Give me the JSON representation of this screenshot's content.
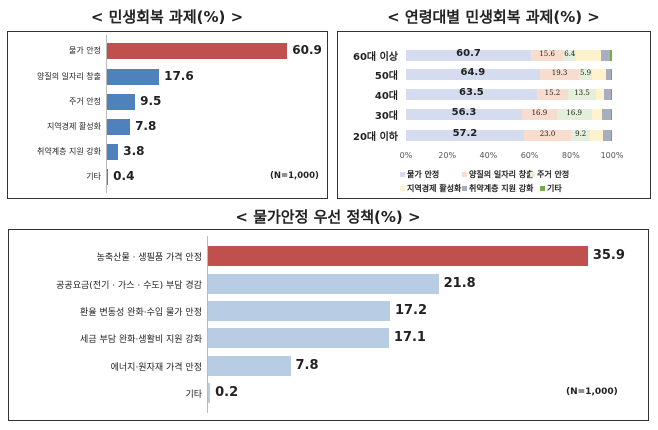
{
  "chart_data": [
    {
      "type": "bar",
      "orientation": "horizontal",
      "title": "< 민생회복 과제(%) >",
      "categories": [
        "물가 안정",
        "양질의 일자리 창출",
        "주거 안정",
        "지역경제 활성화",
        "취약계층 지원 강화",
        "기타"
      ],
      "values": [
        60.9,
        17.6,
        9.5,
        7.8,
        3.8,
        0.4
      ],
      "colors": [
        "#c0504d",
        "#4f81bd",
        "#4f81bd",
        "#4f81bd",
        "#4f81bd",
        "#4f81bd"
      ],
      "note": "(N=1,000)"
    },
    {
      "type": "bar",
      "stacked": true,
      "orientation": "horizontal",
      "title": "< 연령대별 민생회복 과제(%) >",
      "categories": [
        "60대 이상",
        "50대",
        "40대",
        "30대",
        "20대 이하"
      ],
      "xticks": [
        "0%",
        "20%",
        "40%",
        "60%",
        "80%",
        "100%"
      ],
      "xlim": [
        0,
        100
      ],
      "legend": "bottom",
      "series": [
        {
          "name": "물가 안정",
          "color": "#d6dcef",
          "values": [
            60.7,
            64.9,
            63.5,
            56.3,
            57.2
          ]
        },
        {
          "name": "양질의 일자리 창출",
          "color": "#f8dccd",
          "values": [
            15.6,
            19.3,
            15.2,
            16.9,
            23.0
          ]
        },
        {
          "name": "주거 안정",
          "color": "#e3efda",
          "values": [
            6.4,
            5.9,
            13.5,
            16.9,
            9.2
          ]
        },
        {
          "name": "지역경제 활성화",
          "color": "#fff2cc",
          "values": [
            12.0,
            7.0,
            4.0,
            5.0,
            6.0
          ]
        },
        {
          "name": "취약계층 지원 강화",
          "color": "#a6aebf",
          "values": [
            4.3,
            2.4,
            3.4,
            4.5,
            4.3
          ]
        },
        {
          "name": "기타",
          "color": "#70ad47",
          "values": [
            1.0,
            0.5,
            0.4,
            0.4,
            0.3
          ]
        }
      ],
      "labeled_series": [
        0,
        1,
        2
      ]
    },
    {
      "type": "bar",
      "orientation": "horizontal",
      "title": "< 물가안정 우선 정책(%) >",
      "categories": [
        "농축산물 · 생필품 가격 안정",
        "공공요금(전기 · 가스 · 수도) 부담 경감",
        "환율 변동성 완화·수입 물가 안정",
        "세금 부담 완화·생활비 지원 강화",
        "에너지·원자재 가격 안정",
        "기타"
      ],
      "values": [
        35.9,
        21.8,
        17.2,
        17.1,
        7.8,
        0.2
      ],
      "colors": [
        "#c0504d",
        "#b8cce4",
        "#b8cce4",
        "#b8cce4",
        "#b8cce4",
        "#b8cce4"
      ],
      "note": "(N=1,000)"
    }
  ]
}
